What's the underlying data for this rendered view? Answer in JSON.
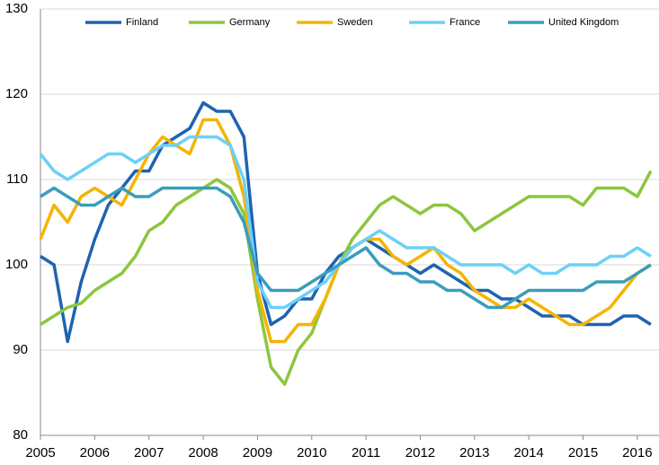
{
  "chart_data": {
    "type": "line",
    "x": [
      2005,
      2005.25,
      2005.5,
      2005.75,
      2006,
      2006.25,
      2006.5,
      2006.75,
      2007,
      2007.25,
      2007.5,
      2007.75,
      2008,
      2008.25,
      2008.5,
      2008.75,
      2009,
      2009.25,
      2009.5,
      2009.75,
      2010,
      2010.25,
      2010.5,
      2010.75,
      2011,
      2011.25,
      2011.5,
      2011.75,
      2012,
      2012.25,
      2012.5,
      2012.75,
      2013,
      2013.25,
      2013.5,
      2013.75,
      2014,
      2014.25,
      2014.5,
      2014.75,
      2015,
      2015.25,
      2015.5,
      2015.75,
      2016,
      2016.25
    ],
    "series": [
      {
        "name": "Finland",
        "color": "#1f63b0",
        "values": [
          101,
          100,
          91,
          98,
          103,
          107,
          109,
          111,
          111,
          114,
          115,
          116,
          119,
          118,
          118,
          115,
          99,
          93,
          94,
          96,
          96,
          99,
          101,
          102,
          103,
          102,
          101,
          100,
          99,
          100,
          99,
          98,
          97,
          97,
          96,
          96,
          95,
          94,
          94,
          94,
          93,
          93,
          93,
          94,
          94,
          93
        ]
      },
      {
        "name": "Germany",
        "color": "#8dc63f",
        "values": [
          93,
          94,
          95,
          95.5,
          97,
          98,
          99,
          101,
          104,
          105,
          107,
          108,
          109,
          110,
          109,
          106,
          96,
          88,
          86,
          90,
          92,
          96,
          100,
          103,
          105,
          107,
          108,
          107,
          106,
          107,
          107,
          106,
          104,
          105,
          106,
          107,
          108,
          108,
          108,
          108,
          107,
          109,
          109,
          109,
          108,
          111
        ]
      },
      {
        "name": "Sweden",
        "color": "#f5b400",
        "values": [
          103,
          107,
          105,
          108,
          109,
          108,
          107,
          110,
          113,
          115,
          114,
          113,
          117,
          117,
          114,
          108,
          97,
          91,
          91,
          93,
          93,
          96,
          100,
          102,
          103,
          103,
          101,
          100,
          101,
          102,
          100,
          99,
          97,
          96,
          95,
          95,
          96,
          95,
          94,
          93,
          93,
          94,
          95,
          97,
          99,
          100
        ]
      },
      {
        "name": "France",
        "color": "#6dd0f7",
        "values": [
          113,
          111,
          110,
          111,
          112,
          113,
          113,
          112,
          113,
          114,
          114,
          115,
          115,
          115,
          114,
          110,
          98,
          95,
          95,
          96,
          97,
          98,
          100,
          102,
          103,
          104,
          103,
          102,
          102,
          102,
          101,
          100,
          100,
          100,
          100,
          99,
          100,
          99,
          99,
          100,
          100,
          100,
          101,
          101,
          102,
          101
        ]
      },
      {
        "name": "United Kingdom",
        "color": "#3a9dbb",
        "values": [
          108,
          109,
          108,
          107,
          107,
          108,
          109,
          108,
          108,
          109,
          109,
          109,
          109,
          109,
          108,
          105,
          99,
          97,
          97,
          97,
          98,
          99,
          100,
          101,
          102,
          100,
          99,
          99,
          98,
          98,
          97,
          97,
          96,
          95,
          95,
          96,
          97,
          97,
          97,
          97,
          97,
          98,
          98,
          98,
          99,
          100
        ]
      }
    ],
    "xlim": [
      2005,
      2016.4
    ],
    "xticks": [
      2005,
      2006,
      2007,
      2008,
      2009,
      2010,
      2011,
      2012,
      2013,
      2014,
      2015,
      2016
    ],
    "ylim": [
      80,
      130
    ],
    "yticks": [
      80,
      90,
      100,
      110,
      120,
      130
    ],
    "grid": true
  }
}
